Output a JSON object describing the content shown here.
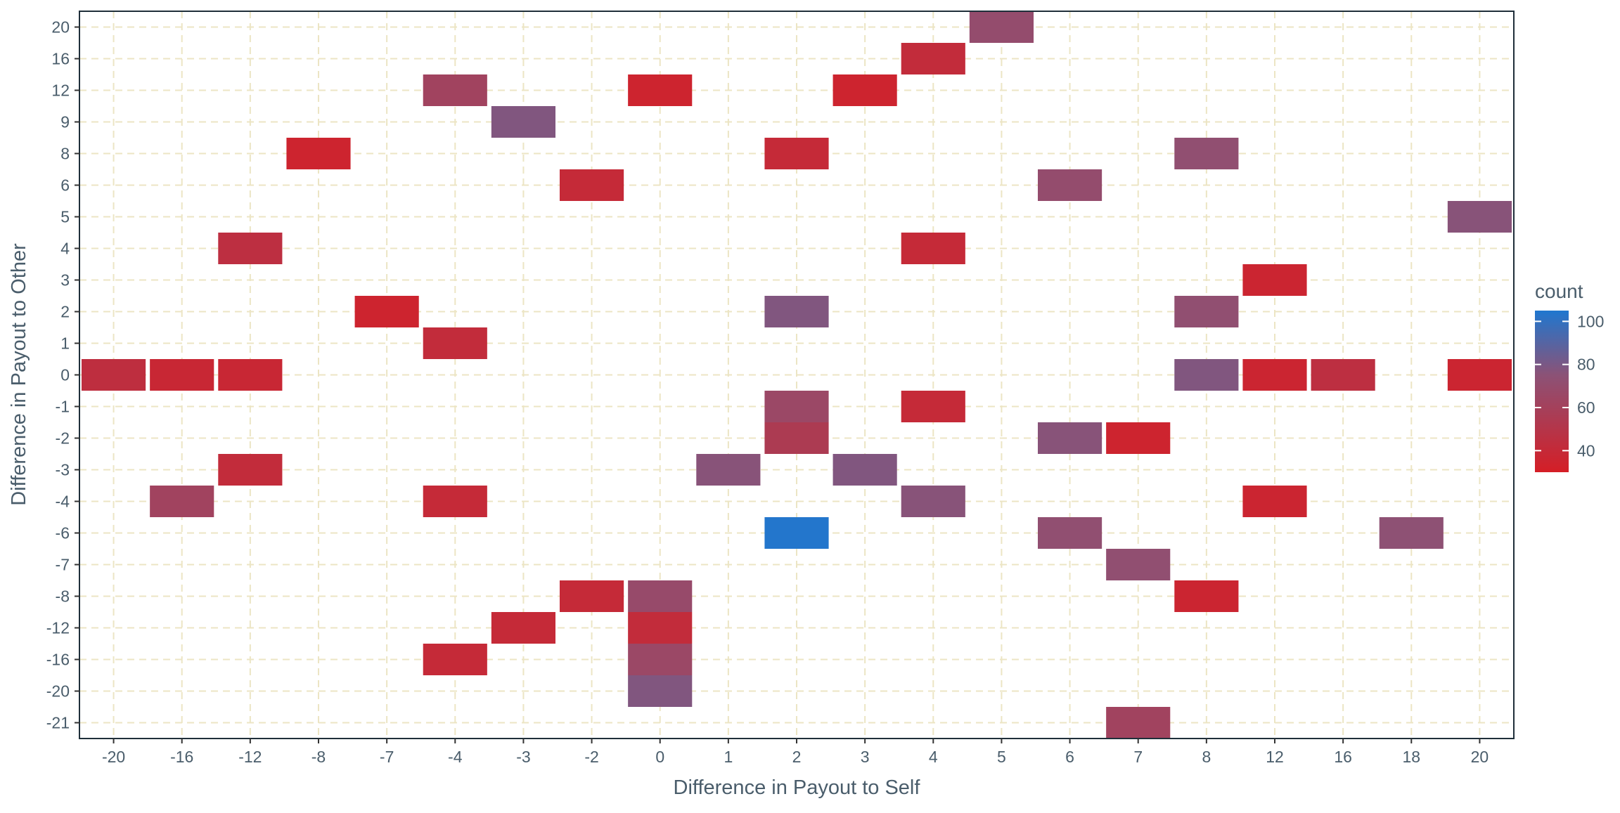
{
  "chart_data": {
    "type": "heatmap",
    "title": "",
    "xlabel": "Difference in Payout to Self",
    "ylabel": "Difference in Payout to Other",
    "x_categories": [
      "-20",
      "-16",
      "-12",
      "-8",
      "-7",
      "-4",
      "-3",
      "-2",
      "0",
      "1",
      "2",
      "3",
      "4",
      "5",
      "6",
      "7",
      "8",
      "12",
      "16",
      "18",
      "20"
    ],
    "y_categories": [
      "-21",
      "-20",
      "-16",
      "-12",
      "-8",
      "-7",
      "-6",
      "-4",
      "-3",
      "-2",
      "-1",
      "0",
      "1",
      "2",
      "3",
      "4",
      "5",
      "6",
      "8",
      "9",
      "12",
      "16",
      "20"
    ],
    "grid": true,
    "legend": {
      "title": "count",
      "placement": "right",
      "ticks": [
        40,
        60,
        80,
        100
      ],
      "range": [
        30,
        105
      ],
      "colors": {
        "low": "#d51e26",
        "mid": "#8c5276",
        "high": "#1f77cf"
      }
    },
    "cells": [
      {
        "x": "5",
        "y": "20",
        "count": 70
      },
      {
        "x": "4",
        "y": "16",
        "count": 42
      },
      {
        "x": "-4",
        "y": "12",
        "count": 62
      },
      {
        "x": "0",
        "y": "12",
        "count": 35
      },
      {
        "x": "3",
        "y": "12",
        "count": 35
      },
      {
        "x": "-3",
        "y": "9",
        "count": 78
      },
      {
        "x": "-8",
        "y": "8",
        "count": 35
      },
      {
        "x": "2",
        "y": "8",
        "count": 40
      },
      {
        "x": "8",
        "y": "8",
        "count": 72
      },
      {
        "x": "-2",
        "y": "6",
        "count": 40
      },
      {
        "x": "6",
        "y": "6",
        "count": 70
      },
      {
        "x": "20",
        "y": "5",
        "count": 76
      },
      {
        "x": "-12",
        "y": "4",
        "count": 45
      },
      {
        "x": "4",
        "y": "4",
        "count": 40
      },
      {
        "x": "12",
        "y": "3",
        "count": 36
      },
      {
        "x": "-7",
        "y": "2",
        "count": 35
      },
      {
        "x": "2",
        "y": "2",
        "count": 78
      },
      {
        "x": "8",
        "y": "2",
        "count": 72
      },
      {
        "x": "-4",
        "y": "1",
        "count": 42
      },
      {
        "x": "-20",
        "y": "0",
        "count": 44
      },
      {
        "x": "-16",
        "y": "0",
        "count": 38
      },
      {
        "x": "-12",
        "y": "0",
        "count": 38
      },
      {
        "x": "8",
        "y": "0",
        "count": 78
      },
      {
        "x": "12",
        "y": "0",
        "count": 36
      },
      {
        "x": "16",
        "y": "0",
        "count": 45
      },
      {
        "x": "20",
        "y": "0",
        "count": 36
      },
      {
        "x": "2",
        "y": "-1",
        "count": 66
      },
      {
        "x": "4",
        "y": "-1",
        "count": 40
      },
      {
        "x": "2",
        "y": "-2",
        "count": 55
      },
      {
        "x": "6",
        "y": "-2",
        "count": 76
      },
      {
        "x": "7",
        "y": "-2",
        "count": 35
      },
      {
        "x": "-12",
        "y": "-3",
        "count": 42
      },
      {
        "x": "1",
        "y": "-3",
        "count": 76
      },
      {
        "x": "3",
        "y": "-3",
        "count": 78
      },
      {
        "x": "-16",
        "y": "-4",
        "count": 62
      },
      {
        "x": "-4",
        "y": "-4",
        "count": 40
      },
      {
        "x": "4",
        "y": "-4",
        "count": 76
      },
      {
        "x": "12",
        "y": "-4",
        "count": 36
      },
      {
        "x": "2",
        "y": "-6",
        "count": 104
      },
      {
        "x": "6",
        "y": "-6",
        "count": 72
      },
      {
        "x": "18",
        "y": "-6",
        "count": 74
      },
      {
        "x": "7",
        "y": "-7",
        "count": 72
      },
      {
        "x": "-2",
        "y": "-8",
        "count": 40
      },
      {
        "x": "0",
        "y": "-8",
        "count": 68
      },
      {
        "x": "8",
        "y": "-8",
        "count": 36
      },
      {
        "x": "-3",
        "y": "-12",
        "count": 40
      },
      {
        "x": "0",
        "y": "-12",
        "count": 42
      },
      {
        "x": "-4",
        "y": "-16",
        "count": 40
      },
      {
        "x": "0",
        "y": "-16",
        "count": 66
      },
      {
        "x": "0",
        "y": "-20",
        "count": 78
      },
      {
        "x": "7",
        "y": "-21",
        "count": 62
      }
    ]
  }
}
